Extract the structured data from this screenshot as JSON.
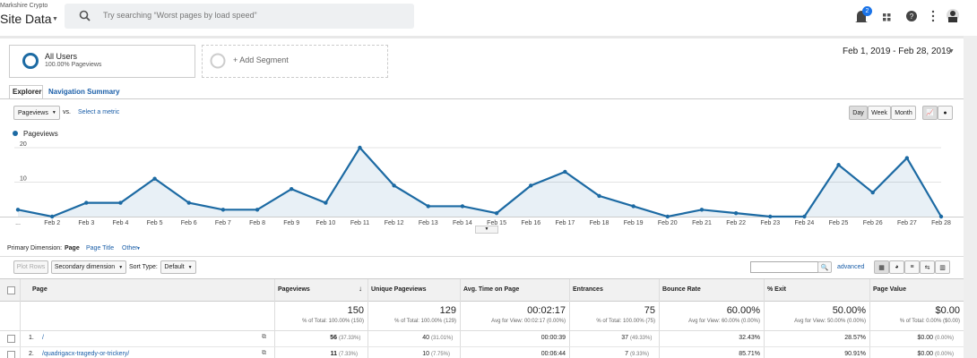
{
  "header": {
    "account": "Markshire Crypto",
    "property": "Site Data",
    "search_placeholder": "Try searching “Worst pages by load speed”",
    "notifications": "2"
  },
  "segments": {
    "active_name": "All Users",
    "active_detail": "100.00% Pageviews",
    "add": "+ Add Segment"
  },
  "date_range": "Feb 1, 2019 - Feb 28, 2019",
  "tabs": [
    "Explorer",
    "Navigation Summary"
  ],
  "metric_controls": {
    "metric": "Pageviews",
    "vs": "vs.",
    "select": "Select a metric",
    "granularity": [
      "Day",
      "Week",
      "Month"
    ]
  },
  "chart_data": {
    "type": "line",
    "categories": [
      "...",
      "Feb 2",
      "Feb 3",
      "Feb 4",
      "Feb 5",
      "Feb 6",
      "Feb 7",
      "Feb 8",
      "Feb 9",
      "Feb 10",
      "Feb 11",
      "Feb 12",
      "Feb 13",
      "Feb 14",
      "Feb 15",
      "Feb 16",
      "Feb 17",
      "Feb 18",
      "Feb 19",
      "Feb 20",
      "Feb 21",
      "Feb 22",
      "Feb 23",
      "Feb 24",
      "Feb 25",
      "Feb 26",
      "Feb 27",
      "Feb 28"
    ],
    "series": [
      {
        "name": "Pageviews",
        "color": "#1c6aa3",
        "values": [
          2,
          0,
          4,
          4,
          11,
          4,
          2,
          2,
          8,
          4,
          20,
          9,
          3,
          3,
          1,
          9,
          13,
          6,
          3,
          0,
          2,
          1,
          0,
          0,
          15,
          7,
          17,
          0
        ]
      }
    ],
    "ylim": [
      0,
      22
    ],
    "yticks": [
      10,
      20
    ],
    "grid": true,
    "area": true
  },
  "dimension_bar": {
    "label": "Primary Dimension:",
    "options": [
      "Page",
      "Page Title",
      "Other"
    ]
  },
  "table_controls": {
    "plot_rows": "Plot Rows",
    "secondary": "Secondary dimension",
    "sort_label": "Sort Type:",
    "sort_value": "Default",
    "advanced": "advanced"
  },
  "table": {
    "columns": [
      "Page",
      "Pageviews",
      "Unique Pageviews",
      "Avg. Time on Page",
      "Entrances",
      "Bounce Rate",
      "% Exit",
      "Page Value"
    ],
    "totals": [
      [
        "150",
        "% of Total: 100.00% (150)"
      ],
      [
        "129",
        "% of Total: 100.00% (129)"
      ],
      [
        "00:02:17",
        "Avg for View: 00:02:17 (0.00%)"
      ],
      [
        "75",
        "% of Total: 100.00% (75)"
      ],
      [
        "60.00%",
        "Avg for View: 60.00% (0.00%)"
      ],
      [
        "50.00%",
        "Avg for View: 50.00% (0.00%)"
      ],
      [
        "$0.00",
        "% of Total: 0.00% ($0.00)"
      ]
    ],
    "rows": [
      {
        "index": "1.",
        "page": "/",
        "cells": [
          [
            "56",
            "(37.33%)"
          ],
          [
            "40",
            "(31.01%)"
          ],
          [
            "00:00:39"
          ],
          [
            "37",
            "(49.33%)"
          ],
          [
            "32.43%"
          ],
          [
            "28.57%"
          ],
          [
            "$0.00",
            "(0.00%)"
          ]
        ]
      },
      {
        "index": "2.",
        "page": "/quadrigacx-tragedy-or-trickery/",
        "cells": [
          [
            "11",
            "(7.33%)"
          ],
          [
            "10",
            "(7.75%)"
          ],
          [
            "00:06:44"
          ],
          [
            "7",
            "(9.33%)"
          ],
          [
            "85.71%"
          ],
          [
            "90.91%"
          ],
          [
            "$0.00",
            "(0.00%)"
          ]
        ]
      }
    ]
  }
}
